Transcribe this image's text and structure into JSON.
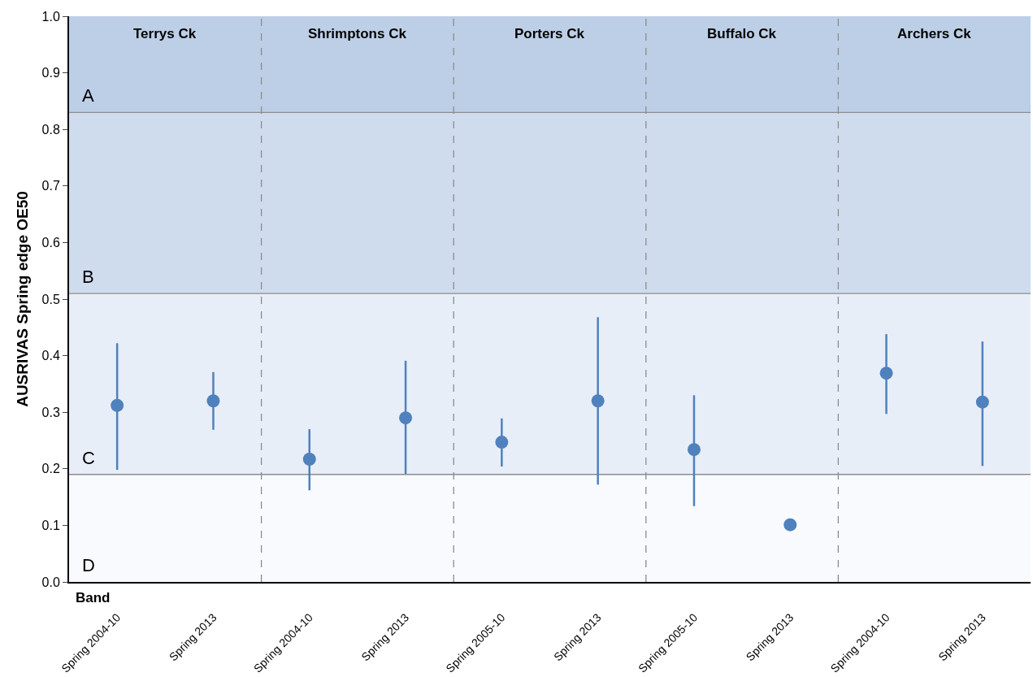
{
  "chart_data": {
    "type": "scatter",
    "ylabel": "AUSRIVAS Spring edge OE50",
    "xlabel": "Band",
    "categories": [
      "Spring 2004-10",
      "Spring 2013",
      "Spring 2004-10",
      "Spring 2013",
      "Spring 2005-10",
      "Spring 2013",
      "Spring 2005-10",
      "Spring 2013",
      "Spring 2004-10",
      "Spring 2013"
    ],
    "series": [
      {
        "color": "#4f81bd",
        "values": [
          0.312,
          0.32,
          0.217,
          0.29,
          0.247,
          0.32,
          0.234,
          0.101,
          0.369,
          0.318
        ],
        "errors": [
          [
            0.198,
            0.422
          ],
          [
            0.269,
            0.371
          ],
          [
            0.162,
            0.27
          ],
          [
            0.191,
            0.391
          ],
          [
            0.204,
            0.289
          ],
          [
            0.172,
            0.468
          ],
          [
            0.134,
            0.33
          ],
          null,
          [
            0.297,
            0.438
          ],
          [
            0.205,
            0.425
          ]
        ]
      }
    ],
    "ylim": [
      0,
      1
    ],
    "yticks": [
      {
        "value": 0,
        "label": "0.0"
      },
      {
        "value": 0.1,
        "label": "0.1"
      },
      {
        "value": 0.2,
        "label": "0.2"
      },
      {
        "value": 0.3,
        "label": "0.3"
      },
      {
        "value": 0.4,
        "label": "0.4"
      },
      {
        "value": 0.5,
        "label": "0.5"
      },
      {
        "value": 0.6,
        "label": "0.6"
      },
      {
        "value": 0.7,
        "label": "0.7"
      },
      {
        "value": 0.8,
        "label": "0.8"
      },
      {
        "value": 0.9,
        "label": "0.9"
      },
      {
        "value": 1,
        "label": "1.0"
      }
    ],
    "bands": [
      {
        "axis": "y",
        "from": 0.83,
        "to": 1,
        "label": "A",
        "color": "#bccfe6"
      },
      {
        "axis": "y",
        "from": 0.51,
        "to": 0.83,
        "label": "B",
        "color": "#cfdcee"
      },
      {
        "axis": "y",
        "from": 0.19,
        "to": 0.51,
        "label": "C",
        "color": "#e8eef7"
      },
      {
        "axis": "y",
        "from": 0,
        "to": 0.19,
        "label": "D",
        "color": "#f8fafd"
      }
    ],
    "ref_lines": [
      {
        "axis": "y",
        "value": 0.83,
        "color": "#8c8c8c",
        "line_style": "solid"
      },
      {
        "axis": "y",
        "value": 0.51,
        "color": "#8c8c8c",
        "line_style": "solid"
      },
      {
        "axis": "y",
        "value": 0.19,
        "color": "#8c8c8c",
        "line_style": "solid"
      }
    ],
    "annotations": [
      "Terrys Ck",
      "Shrimptons Ck",
      "Porters Ck",
      "Buffalo Ck",
      "Archers Ck"
    ],
    "marker": "circle",
    "grid": false
  }
}
